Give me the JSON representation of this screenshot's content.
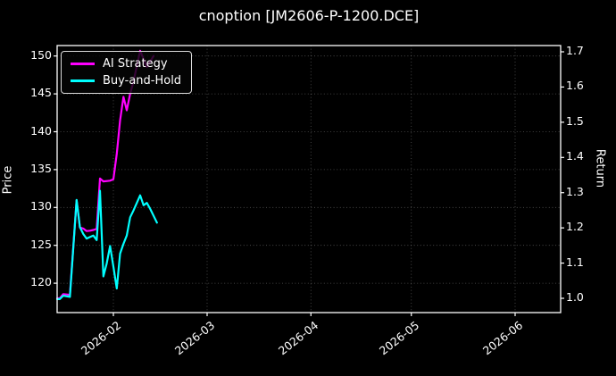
{
  "window": {
    "title": "cnoption [JM2606-P-1200.DCE]"
  },
  "colors": {
    "background": "#000000",
    "foreground": "#ffffff",
    "grid": "#9a9a9a",
    "ai_strategy": "#ff00ff",
    "buy_and_hold": "#00ffff"
  },
  "axes": {
    "left": {
      "label": "Price",
      "tick_labels": [
        "150",
        "145",
        "140",
        "135",
        "130",
        "125",
        "120"
      ]
    },
    "right": {
      "label": "Return",
      "tick_labels": [
        "1.7",
        "1.6",
        "1.5",
        "1.4",
        "1.3",
        "1.2",
        "1.1",
        "1.0"
      ]
    },
    "x": {
      "tick_labels": [
        "2026-02",
        "2026-03",
        "2026-04",
        "2026-05",
        "2026-06"
      ],
      "tick_dates": [
        "2026-02-01",
        "2026-03-01",
        "2026-04-01",
        "2026-05-01",
        "2026-06-01"
      ]
    }
  },
  "legend": {
    "items": [
      {
        "label": "AI Strategy",
        "color": "#ff00ff"
      },
      {
        "label": "Buy-and-Hold",
        "color": "#00ffff"
      }
    ]
  },
  "chart_data": {
    "type": "line",
    "title": "cnoption [JM2606-P-1200.DCE]",
    "grid": true,
    "legend_position": "upper left",
    "x_axis": {
      "tick_labels": [
        "2026-02",
        "2026-03",
        "2026-04",
        "2026-05",
        "2026-06"
      ],
      "range": [
        "2026-01-15",
        "2026-06-14"
      ]
    },
    "left_y": {
      "label": "Price",
      "ticks": [
        150,
        145,
        140,
        135,
        130,
        125,
        120
      ],
      "range": [
        116.1,
        151.3
      ]
    },
    "right_y": {
      "label": "Return",
      "ticks": [
        1.7,
        1.6,
        1.5,
        1.4,
        1.3,
        1.2,
        1.1,
        1.0
      ],
      "range": [
        0.96,
        1.72
      ]
    },
    "series": [
      {
        "name": "AI Strategy",
        "axis": "right",
        "color": "#ff00ff",
        "points": [
          [
            "2026-01-15",
            1.0
          ],
          [
            "2026-01-16",
            1.0
          ],
          [
            "2026-01-17",
            1.012
          ],
          [
            "2026-01-19",
            1.01
          ],
          [
            "2026-01-21",
            1.278
          ],
          [
            "2026-01-22",
            1.201
          ],
          [
            "2026-01-23",
            1.198
          ],
          [
            "2026-01-24",
            1.191
          ],
          [
            "2026-01-25",
            1.192
          ],
          [
            "2026-01-26",
            1.194
          ],
          [
            "2026-01-27",
            1.197
          ],
          [
            "2026-01-28",
            1.34
          ],
          [
            "2026-01-29",
            1.332
          ],
          [
            "2026-01-31",
            1.334
          ],
          [
            "2026-02-01",
            1.338
          ],
          [
            "2026-02-02",
            1.41
          ],
          [
            "2026-02-03",
            1.505
          ],
          [
            "2026-02-04",
            1.572
          ],
          [
            "2026-02-05",
            1.534
          ],
          [
            "2026-02-06",
            1.581
          ],
          [
            "2026-02-07",
            1.615
          ],
          [
            "2026-02-09",
            1.703
          ],
          [
            "2026-02-11",
            1.657
          ],
          [
            "2026-02-13",
            1.688
          ]
        ]
      },
      {
        "name": "Buy-and-Hold",
        "axis": "left",
        "color": "#00ffff",
        "points": [
          [
            "2026-01-15",
            117.9
          ],
          [
            "2026-01-16",
            117.9
          ],
          [
            "2026-01-17",
            118.35
          ],
          [
            "2026-01-19",
            118.2
          ],
          [
            "2026-01-21",
            131.0
          ],
          [
            "2026-01-22",
            127.4
          ],
          [
            "2026-01-23",
            126.5
          ],
          [
            "2026-01-24",
            125.9
          ],
          [
            "2026-01-25",
            126.1
          ],
          [
            "2026-01-26",
            126.3
          ],
          [
            "2026-01-27",
            125.7
          ],
          [
            "2026-01-28",
            132.2
          ],
          [
            "2026-01-29",
            120.9
          ],
          [
            "2026-01-30",
            122.6
          ],
          [
            "2026-01-31",
            124.9
          ],
          [
            "2026-02-01",
            122.2
          ],
          [
            "2026-02-02",
            119.3
          ],
          [
            "2026-02-03",
            123.9
          ],
          [
            "2026-02-04",
            125.2
          ],
          [
            "2026-02-05",
            126.3
          ],
          [
            "2026-02-06",
            128.7
          ],
          [
            "2026-02-07",
            129.6
          ],
          [
            "2026-02-09",
            131.6
          ],
          [
            "2026-02-10",
            130.3
          ],
          [
            "2026-02-11",
            130.6
          ],
          [
            "2026-02-12",
            129.8
          ],
          [
            "2026-02-14",
            128.0
          ]
        ]
      }
    ]
  }
}
